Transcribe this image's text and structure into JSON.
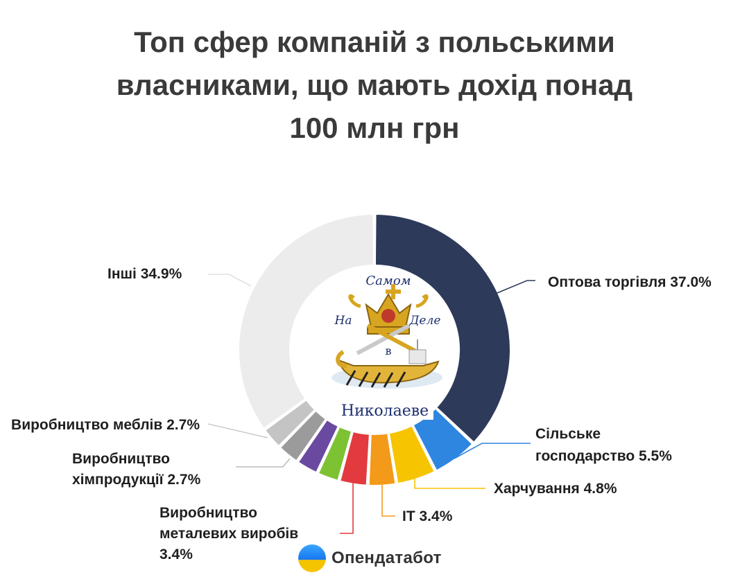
{
  "title_lines": [
    "Топ сфер компаній з польськими",
    "власниками, що мають дохід понад",
    "100 млн грн"
  ],
  "brand": {
    "name": "Опендатабот",
    "icon": "opendatabot-logo-icon"
  },
  "watermark": {
    "text": [
      "Самом",
      "На",
      "Деле",
      "в",
      "Николаеве"
    ]
  },
  "chart_data": {
    "type": "pie",
    "style": "donut",
    "title": "Топ сфер компаній з польськими власниками, що мають дохід понад 100 млн грн",
    "unit": "%",
    "slices": [
      {
        "label": "Оптова торгівля",
        "value": 37.0,
        "display": "Оптова торгівля 37.0%",
        "color": "#2d3a5a"
      },
      {
        "label": "Сільське господарство",
        "value": 5.5,
        "display": "Сільське господарство 5.5%",
        "color": "#2f86e0"
      },
      {
        "label": "Харчування",
        "value": 4.8,
        "display": "Харчування 4.8%",
        "color": "#f6c400"
      },
      {
        "label": "IT",
        "value": 3.4,
        "display": "IT 3.4%",
        "color": "#f39a1a"
      },
      {
        "label": "Виробництво металевих виробів",
        "value": 3.4,
        "display": "Виробництво металевих виробів 3.4%",
        "color": "#e23a3e"
      },
      {
        "label": "",
        "value": 2.7,
        "display": "",
        "color": "#7dc232"
      },
      {
        "label": "Виробництво хімпродукції",
        "value": 2.7,
        "display": "Виробництво хімпродукції 2.7%",
        "color": "#6a4aa0"
      },
      {
        "label": "Виробництво меблів",
        "value": 2.7,
        "display": "Виробництво меблів 2.7%",
        "color": "#9b9b9b"
      },
      {
        "label": "",
        "value": 2.7,
        "display": "",
        "color": "#c4c4c4"
      },
      {
        "label": "Інші",
        "value": 34.9,
        "display": "Інші 34.9%",
        "color": "#ececec"
      }
    ],
    "label_text": {
      "wholesale": [
        "Оптова торгівля 37.0%"
      ],
      "agriculture": [
        "Сільське",
        "господарство 5.5%"
      ],
      "food": [
        "Харчування 4.8%"
      ],
      "it": [
        "IT 3.4%"
      ],
      "metal": [
        "Виробництво",
        "металевих виробів",
        "3.4%"
      ],
      "chem": [
        "Виробництво",
        "хімпродукції 2.7%"
      ],
      "furniture": [
        "Виробництво меблів 2.7%"
      ],
      "other": [
        "Інші 34.9%"
      ]
    }
  }
}
